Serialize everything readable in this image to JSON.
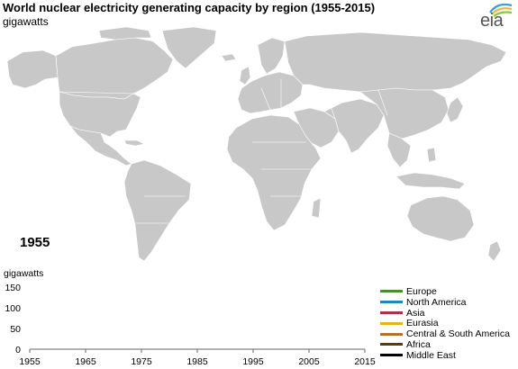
{
  "header": {
    "title": "World nuclear electricity generating capacity by region (1955-2015)",
    "subtitle": "gigawatts",
    "logo": "eia"
  },
  "map": {
    "year_label": "1955",
    "land_color": "#c8c8c8",
    "border_color": "#ffffff"
  },
  "chart_data": {
    "type": "line",
    "ylabel": "gigawatts",
    "x_ticks": [
      "1955",
      "1965",
      "1975",
      "1985",
      "1995",
      "2005",
      "2015"
    ],
    "y_ticks": [
      "0",
      "50",
      "100",
      "150"
    ],
    "xlim": [
      1955,
      2015
    ],
    "ylim": [
      0,
      150
    ],
    "series": [
      {
        "name": "Europe",
        "color": "#4f8a2e",
        "x": [
          1955
        ],
        "values": [
          0
        ]
      },
      {
        "name": "North America",
        "color": "#1f88b8",
        "x": [
          1955
        ],
        "values": [
          0
        ]
      },
      {
        "name": "Asia",
        "color": "#a8334e",
        "x": [
          1955
        ],
        "values": [
          0
        ]
      },
      {
        "name": "Eurasia",
        "color": "#e3b51a",
        "x": [
          1955
        ],
        "values": [
          0
        ]
      },
      {
        "name": "Central & South America",
        "color": "#b5722d",
        "x": [
          1955
        ],
        "values": [
          0
        ]
      },
      {
        "name": "Africa",
        "color": "#5c3a10",
        "x": [
          1955
        ],
        "values": [
          0
        ]
      },
      {
        "name": "Middle East",
        "color": "#000000",
        "x": [
          1955
        ],
        "values": [
          0
        ]
      }
    ]
  }
}
